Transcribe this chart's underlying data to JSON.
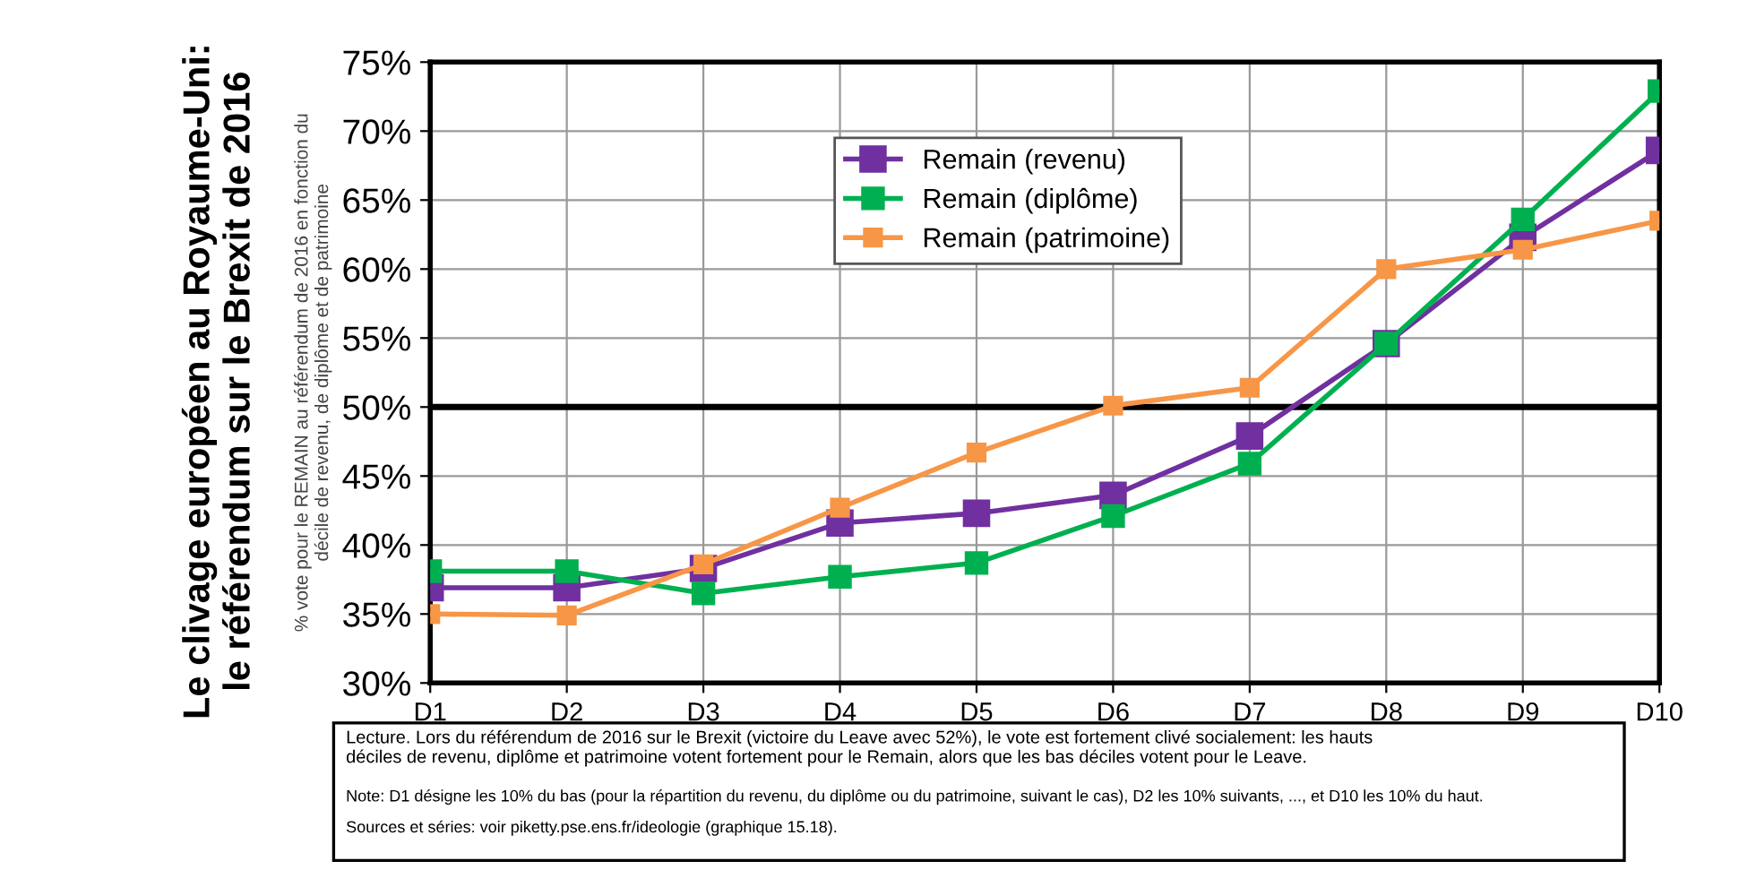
{
  "chart_data": {
    "type": "line",
    "title": "Le clivage européen au Royaume-Uni:\nle référendum sur le Brexit de 2016",
    "ylabel": "% vote pour le REMAIN au référendum de 2016 en fonction du\ndécile de revenu, de diplôme et de patrimoine",
    "categories": [
      "D1",
      "D2",
      "D3",
      "D4",
      "D5",
      "D6",
      "D7",
      "D8",
      "D9",
      "D10"
    ],
    "series": [
      {
        "name": "Remain (revenu)",
        "color": "#7030a0",
        "values": [
          36.9,
          36.9,
          38.3,
          41.6,
          42.3,
          43.6,
          47.9,
          54.6,
          62.3,
          68.6
        ]
      },
      {
        "name": "Remain (diplôme)",
        "color": "#00b050",
        "values": [
          38.1,
          38.1,
          36.5,
          37.7,
          38.7,
          42.1,
          45.9,
          54.6,
          63.6,
          72.9
        ]
      },
      {
        "name": "Remain (patrimoine)",
        "color": "#f79646",
        "values": [
          35.0,
          34.9,
          38.6,
          42.7,
          46.7,
          50.1,
          51.4,
          60.0,
          61.4,
          63.5
        ]
      }
    ],
    "ylim": [
      30,
      75
    ],
    "yticks": [
      {
        "value": 30,
        "label": "30%"
      },
      {
        "value": 35,
        "label": "35%"
      },
      {
        "value": 40,
        "label": "40%"
      },
      {
        "value": 45,
        "label": "45%"
      },
      {
        "value": 50,
        "label": "50%"
      },
      {
        "value": 55,
        "label": "55%"
      },
      {
        "value": 60,
        "label": "60%"
      },
      {
        "value": 65,
        "label": "65%"
      },
      {
        "value": 70,
        "label": "70%"
      },
      {
        "value": 75,
        "label": "75%"
      }
    ],
    "ref_lines": [
      {
        "axis": "y",
        "value": 50,
        "color": "#000000"
      }
    ],
    "grid": true,
    "legend": "top",
    "marker": "square",
    "line_style": "solid",
    "annotations": [
      "Lecture. Lors du référendum de 2016 sur le Brexit (victoire du Leave avec 52%), le vote est fortement clivé socialement: les hauts\ndéciles de revenu, diplôme et patrimoine votent fortement pour le Remain, alors que les bas déciles votent pour le Leave.",
      "Note: D1 désigne les 10% du bas (pour la répartition du revenu, du diplôme ou du patrimoine, suivant le cas), D2 les 10% suivants, ..., et D10 les 10% du haut.",
      "Sources et séries: voir piketty.pse.ens.fr/ideologie (graphique 15.18)."
    ]
  }
}
